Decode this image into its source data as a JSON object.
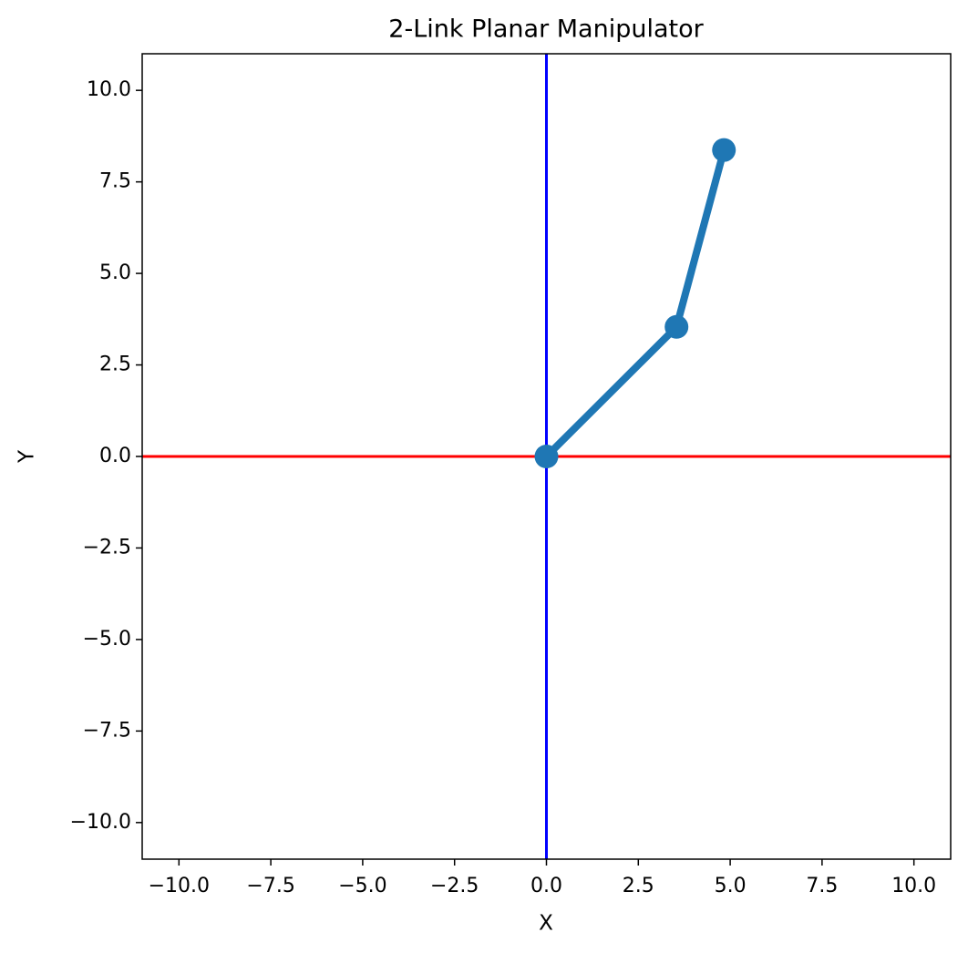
{
  "chart_data": {
    "type": "line",
    "title": "2-Link Planar Manipulator",
    "xlabel": "X",
    "ylabel": "Y",
    "xlim": [
      -11,
      11
    ],
    "ylim": [
      -11,
      11
    ],
    "xticks": [
      {
        "value": -10,
        "label": "−10.0"
      },
      {
        "value": -7.5,
        "label": "−7.5"
      },
      {
        "value": -5,
        "label": "−5.0"
      },
      {
        "value": -2.5,
        "label": "−2.5"
      },
      {
        "value": 0,
        "label": "0.0"
      },
      2.5,
      {
        "value": 5,
        "label": "5.0"
      },
      7.5,
      {
        "value": 10,
        "label": "10.0"
      }
    ],
    "yticks": [
      {
        "value": -10,
        "label": "−10.0"
      },
      {
        "value": -7.5,
        "label": "−7.5"
      },
      {
        "value": -5,
        "label": "−5.0"
      },
      {
        "value": -2.5,
        "label": "−2.5"
      },
      {
        "value": 0,
        "label": "0.0"
      },
      2.5,
      {
        "value": 5,
        "label": "5.0"
      },
      7.5,
      {
        "value": 10,
        "label": "10.0"
      }
    ],
    "axhline": {
      "y": 0,
      "color": "#ff0000"
    },
    "axvline": {
      "x": 0,
      "color": "#0000ff"
    },
    "series": [
      {
        "color": "#1f77b4",
        "marker": "o",
        "x": [
          0,
          3.54,
          4.83
        ],
        "y": [
          0,
          3.54,
          8.37
        ]
      }
    ]
  }
}
